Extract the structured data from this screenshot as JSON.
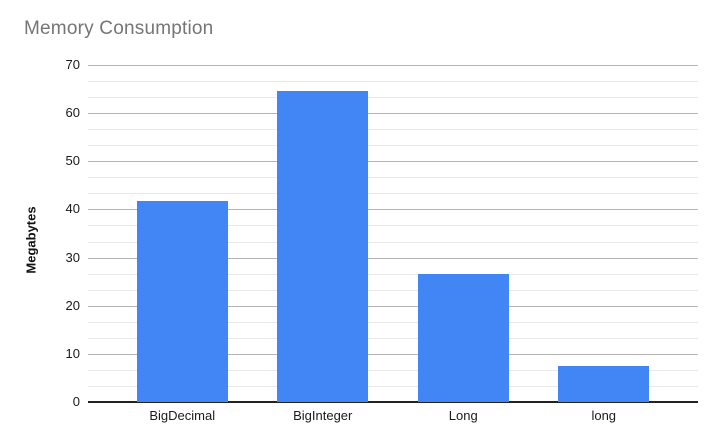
{
  "chart_data": {
    "type": "bar",
    "title": "Memory Consumption",
    "categories": [
      "BigDecimal",
      "BigInteger",
      "Long",
      "long"
    ],
    "values": [
      41.7,
      64.7,
      26.5,
      7.5
    ],
    "xlabel": "",
    "ylabel": "Megabytes",
    "ylim": [
      0,
      70
    ],
    "yticks": [
      0,
      10,
      20,
      30,
      40,
      50,
      60,
      70
    ],
    "ytick_step": 10,
    "minor_gridlines_between_majors": 2,
    "grid": true,
    "legend_position": "none"
  },
  "colors": {
    "background": "#ffffff",
    "title_text": "#757575",
    "axis_text": "#1a1a1a",
    "bar": "#4285F4",
    "major_gridline": "#b5b5b5",
    "minor_gridline": "#e9e9e9",
    "baseline": "#222222"
  }
}
